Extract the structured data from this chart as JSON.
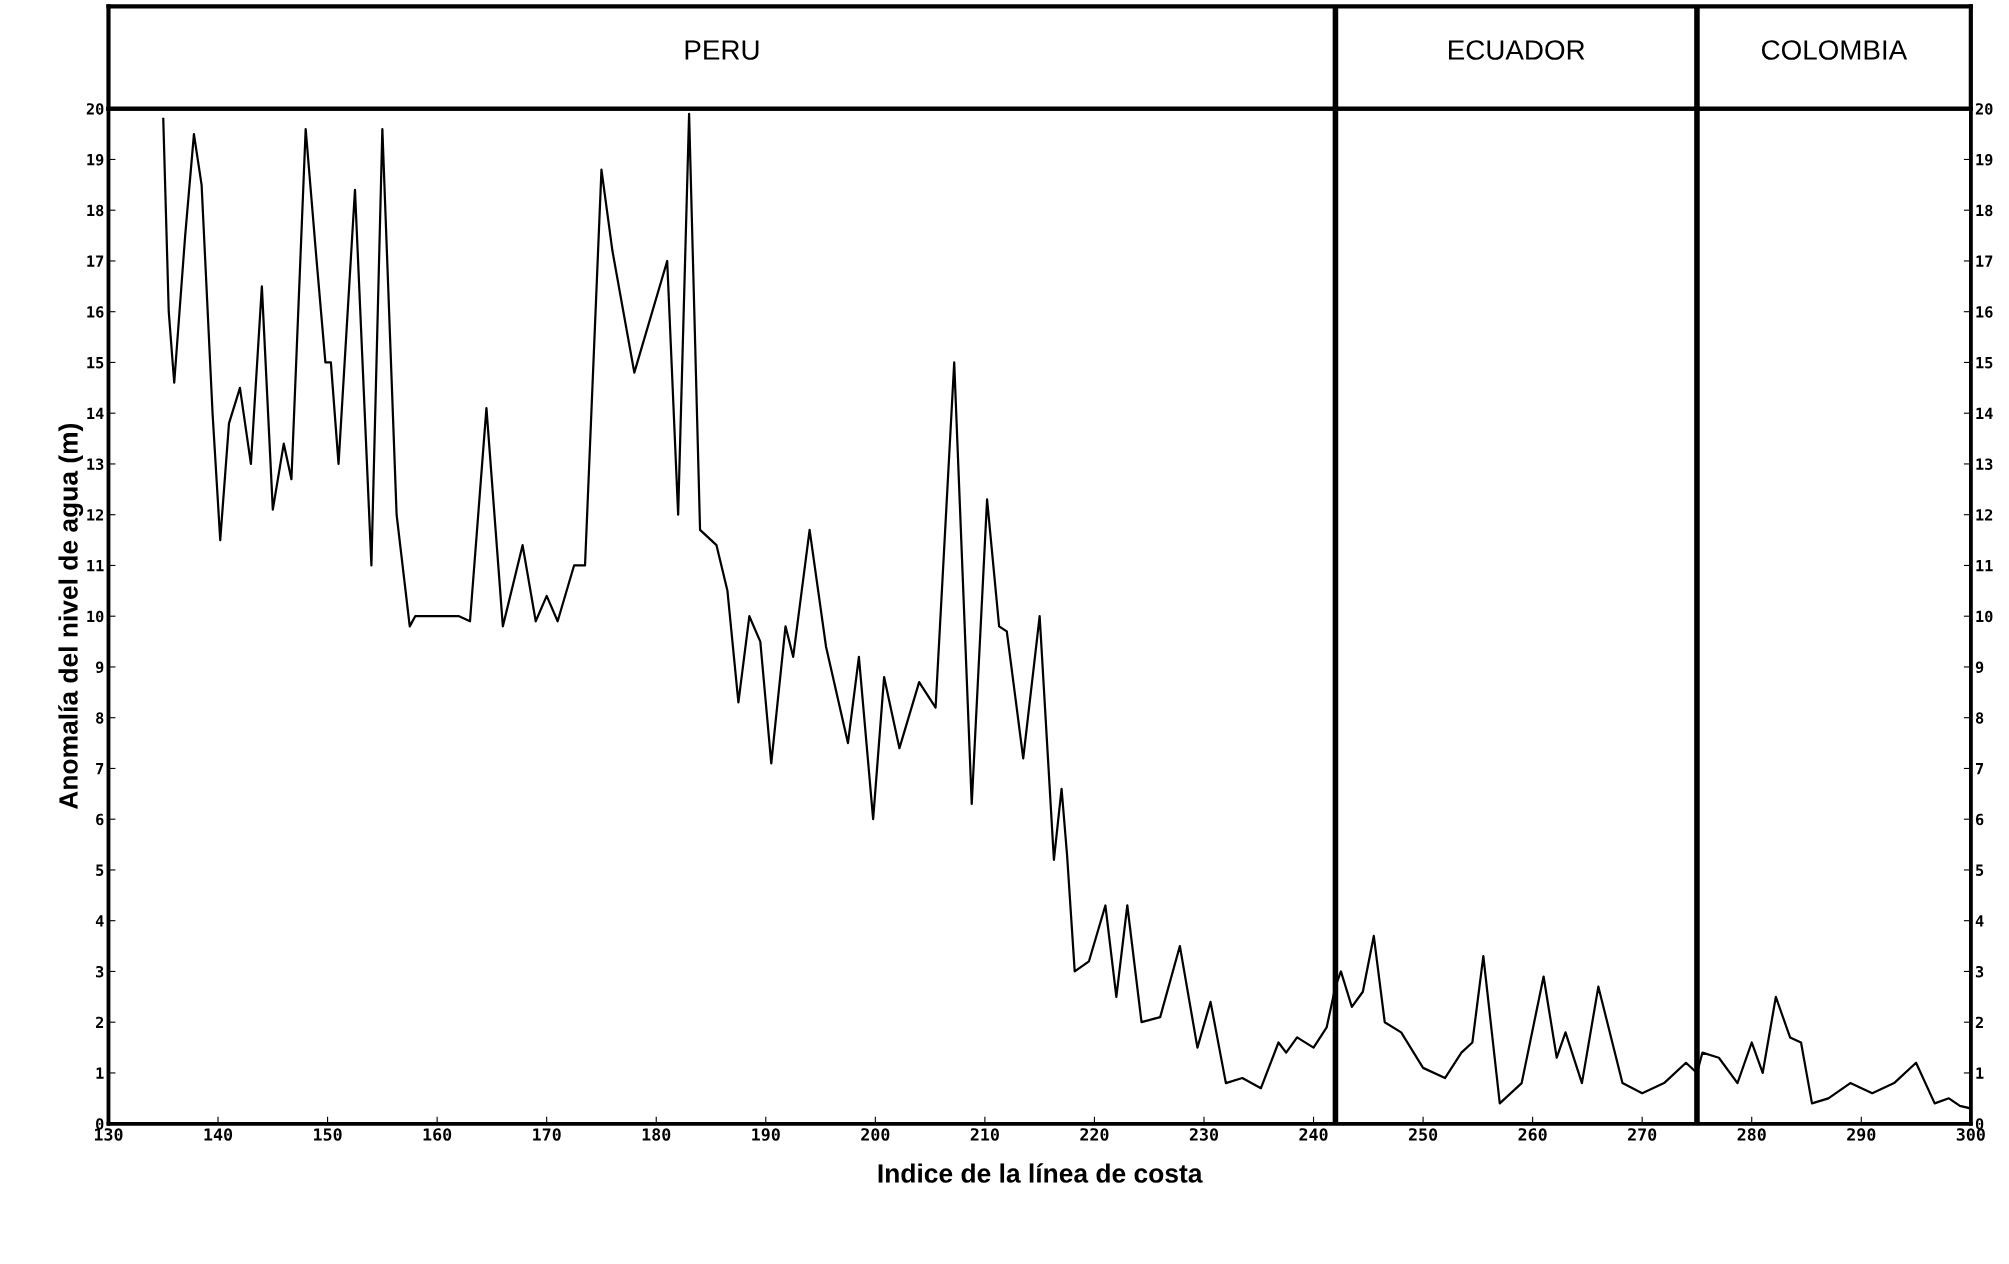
{
  "chart_data": {
    "type": "line",
    "xlabel": "Indice de la línea de costa",
    "ylabel": "Anomalía del nivel de agua (m)",
    "series": [
      {
        "color": "#000000",
        "x": [
          135,
          135.5,
          136,
          137,
          137.8,
          138.5,
          139.5,
          140.2,
          141,
          142,
          143,
          144,
          145,
          146,
          146.7,
          148,
          149,
          149.8,
          150.3,
          151,
          152.5,
          154,
          155,
          156.3,
          157.5,
          158,
          162,
          163,
          164.5,
          166,
          167.8,
          169,
          170,
          171,
          172.5,
          173.5,
          175,
          176,
          178,
          181,
          182,
          183,
          184,
          185.5,
          186.5,
          187.5,
          188.5,
          189.5,
          190.5,
          191.8,
          192.5,
          194,
          195.5,
          197.5,
          198.5,
          199.8,
          200.8,
          202.2,
          204,
          205.5,
          207.2,
          208.8,
          210.2,
          211.3,
          212,
          213.5,
          215,
          216.3,
          217,
          217.5,
          218.2,
          219.5,
          221,
          222,
          223,
          224.3,
          226,
          227.8,
          229.4,
          230.6,
          232,
          233.5,
          235.2,
          236.8,
          237.5,
          238.5,
          240,
          241.2,
          242,
          242.5,
          243.5,
          244.5,
          245.5,
          246.5,
          248,
          250,
          252,
          253.5,
          254.5,
          255.5,
          257,
          259,
          261,
          262.2,
          263,
          264.5,
          266,
          268.2,
          270,
          272,
          274,
          275,
          275.5,
          277,
          278.7,
          280,
          281,
          282.2,
          283.5,
          284.5,
          285.5,
          287,
          289,
          291,
          293,
          295,
          296.7,
          298,
          299,
          300
        ],
        "values": [
          19.8,
          16,
          14.6,
          17.5,
          19.5,
          18.5,
          14,
          11.5,
          13.8,
          14.5,
          13.0,
          16.5,
          12.1,
          13.4,
          12.7,
          19.6,
          17,
          15,
          15,
          13.0,
          18.4,
          11,
          19.6,
          12,
          9.8,
          10,
          10,
          9.9,
          14.1,
          9.8,
          11.4,
          9.9,
          10.4,
          9.9,
          11,
          11,
          18.8,
          17.2,
          14.8,
          17.0,
          12,
          19.9,
          11.7,
          11.4,
          10.5,
          8.3,
          10,
          9.5,
          7.1,
          9.8,
          9.2,
          11.7,
          9.4,
          7.5,
          9.2,
          6.0,
          8.8,
          7.4,
          8.7,
          8.2,
          15,
          6.3,
          12.3,
          9.8,
          9.7,
          7.2,
          10,
          5.2,
          6.6,
          5.3,
          3.0,
          3.2,
          4.3,
          2.5,
          4.3,
          2.0,
          2.1,
          3.5,
          1.5,
          2.4,
          0.8,
          0.9,
          0.7,
          1.6,
          1.4,
          1.7,
          1.5,
          1.9,
          2.7,
          3.0,
          2.3,
          2.6,
          3.7,
          2.0,
          1.8,
          1.1,
          0.9,
          1.4,
          1.6,
          3.3,
          0.4,
          0.8,
          2.9,
          1.3,
          1.8,
          0.8,
          2.7,
          0.8,
          0.6,
          0.8,
          1.2,
          1.0,
          1.4,
          1.3,
          0.8,
          1.6,
          1.0,
          2.5,
          1.7,
          1.6,
          0.4,
          0.5,
          0.8,
          0.6,
          0.8,
          1.2,
          0.4,
          0.5,
          0.35,
          0.3
        ]
      }
    ],
    "xlim": [
      130,
      300
    ],
    "xticks": [
      130,
      140,
      150,
      160,
      170,
      180,
      190,
      200,
      210,
      220,
      230,
      240,
      250,
      260,
      270,
      280,
      290,
      300
    ],
    "ylim": [
      0,
      20
    ],
    "yticks": [
      0,
      1,
      2,
      3,
      4,
      5,
      6,
      7,
      8,
      9,
      10,
      11,
      12,
      13,
      14,
      15,
      16,
      17,
      18,
      19,
      20
    ],
    "y2lim": [
      0,
      20
    ],
    "y2ticks": [
      0,
      1,
      2,
      3,
      4,
      5,
      6,
      7,
      8,
      9,
      10,
      11,
      12,
      13,
      14,
      15,
      16,
      17,
      18,
      19,
      20
    ],
    "ref_lines": [
      {
        "axis": "x",
        "value": 242,
        "color": "#000000"
      },
      {
        "axis": "x",
        "value": 275,
        "color": "#000000"
      }
    ],
    "annotations": [
      "PERU",
      "ECUADOR",
      "COLOMBIA"
    ],
    "grid": false,
    "legend": false,
    "marker": "none",
    "line_style": "solid"
  }
}
